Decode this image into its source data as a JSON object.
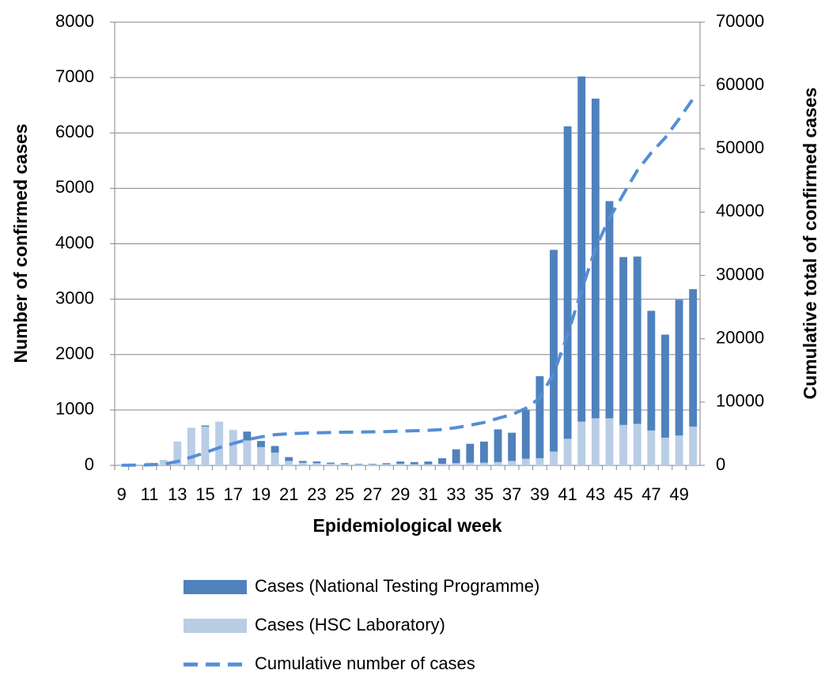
{
  "chart_data": {
    "type": "bar_line",
    "x_label": "Epidemiological week",
    "y_label": "Number of confirmed cases",
    "y2_label": "Cumulative total of confirmed cases",
    "categories": [
      "9",
      null,
      "11",
      null,
      "13",
      null,
      "15",
      null,
      "17",
      null,
      "19",
      null,
      "21",
      null,
      "23",
      null,
      "25",
      null,
      "27",
      null,
      "29",
      null,
      "31",
      null,
      "33",
      null,
      "35",
      null,
      "37",
      null,
      "39",
      null,
      "41",
      null,
      "43",
      null,
      "45",
      null,
      "47",
      null,
      "49",
      null
    ],
    "series": [
      {
        "name": "Cases (National Testing Programme)",
        "type": "bar",
        "color": "#4f81bd",
        "values": [
          0,
          0,
          0,
          0,
          0,
          0,
          20,
          0,
          0,
          160,
          110,
          120,
          70,
          30,
          30,
          20,
          20,
          10,
          10,
          20,
          40,
          40,
          50,
          100,
          250,
          340,
          380,
          590,
          510,
          880,
          1480,
          3640,
          5640,
          6230,
          5770,
          3920,
          3030,
          3020,
          2160,
          1860,
          2450,
          2480
        ]
      },
      {
        "name": "Cases (HSC Laboratory)",
        "type": "bar",
        "color": "#b9cde5",
        "values": [
          20,
          20,
          50,
          100,
          430,
          680,
          700,
          790,
          640,
          450,
          330,
          230,
          80,
          50,
          40,
          30,
          20,
          20,
          20,
          20,
          30,
          20,
          20,
          30,
          40,
          50,
          50,
          60,
          80,
          120,
          130,
          250,
          480,
          790,
          850,
          850,
          730,
          750,
          630,
          500,
          540,
          700
        ]
      },
      {
        "name": "Cumulative number of cases",
        "type": "line",
        "axis": "y2",
        "color": "#558ed5",
        "dashed": true,
        "values": [
          20,
          40,
          90,
          190,
          620,
          1300,
          2020,
          2810,
          3450,
          4060,
          4500,
          4850,
          5000,
          5080,
          5150,
          5200,
          5240,
          5270,
          5300,
          5340,
          5410,
          5470,
          5540,
          5670,
          5960,
          6350,
          6780,
          7430,
          8020,
          9020,
          10630,
          14520,
          20640,
          27660,
          34280,
          39050,
          42810,
          46580,
          49370,
          51730,
          54720,
          57900
        ]
      }
    ],
    "ylim": [
      0,
      8000
    ],
    "yticks": [
      0,
      1000,
      2000,
      3000,
      4000,
      5000,
      6000,
      7000,
      8000
    ],
    "y2lim": [
      0,
      70000
    ],
    "y2ticks": [
      0,
      10000,
      20000,
      30000,
      40000,
      50000,
      60000,
      70000
    ],
    "grid": true,
    "stacked": true,
    "legend": "bottom"
  }
}
